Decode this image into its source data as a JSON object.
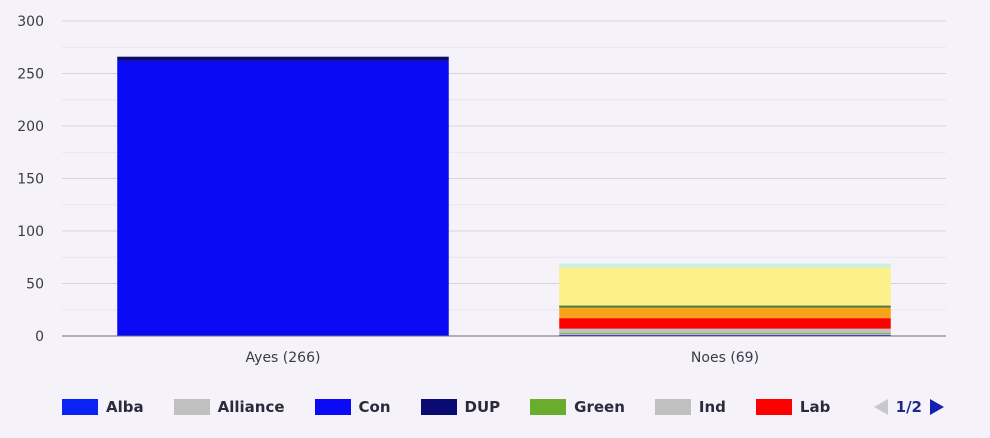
{
  "chart_data": {
    "type": "bar",
    "stacked": true,
    "categories": [
      "Ayes (266)",
      "Noes (69)"
    ],
    "ylim": [
      0,
      300
    ],
    "yticks": [
      0,
      50,
      100,
      150,
      200,
      250,
      300
    ],
    "grid": true,
    "series": [
      {
        "name": "Alba",
        "color": "#0b24f5",
        "values": [
          0,
          1
        ]
      },
      {
        "name": "Alliance",
        "color": "#c0c0c0",
        "values": [
          0,
          1
        ]
      },
      {
        "name": "Con",
        "color": "#0a0af5",
        "values": [
          262,
          0
        ]
      },
      {
        "name": "DUP",
        "color": "#0a0a73",
        "values": [
          4,
          0
        ]
      },
      {
        "name": "Green",
        "color": "#6aad2e",
        "values": [
          0,
          1
        ]
      },
      {
        "name": "Ind",
        "color": "#c0c0c0",
        "values": [
          0,
          4
        ]
      },
      {
        "name": "Lab",
        "color": "#ff0000",
        "values": [
          0,
          10
        ]
      },
      {
        "name": "",
        "color": "#f7a21b",
        "values": [
          0,
          10
        ]
      },
      {
        "name": "",
        "color": "#4a7a3a",
        "values": [
          0,
          2
        ]
      },
      {
        "name": "",
        "color": "#fdf08a",
        "values": [
          0,
          36
        ]
      },
      {
        "name": "",
        "color": "#c9f3df",
        "values": [
          0,
          4
        ]
      }
    ]
  },
  "legend": {
    "items": [
      {
        "label": "Alba",
        "color": "#0b24f5"
      },
      {
        "label": "Alliance",
        "color": "#c0c0c0"
      },
      {
        "label": "Con",
        "color": "#0a0af5"
      },
      {
        "label": "DUP",
        "color": "#0a0a73"
      },
      {
        "label": "Green",
        "color": "#6aad2e"
      },
      {
        "label": "Ind",
        "color": "#c0c0c0"
      },
      {
        "label": "Lab",
        "color": "#ff0000"
      }
    ],
    "page": "1/2",
    "prev_icon": "triangle-left-icon",
    "next_icon": "triangle-right-icon"
  }
}
